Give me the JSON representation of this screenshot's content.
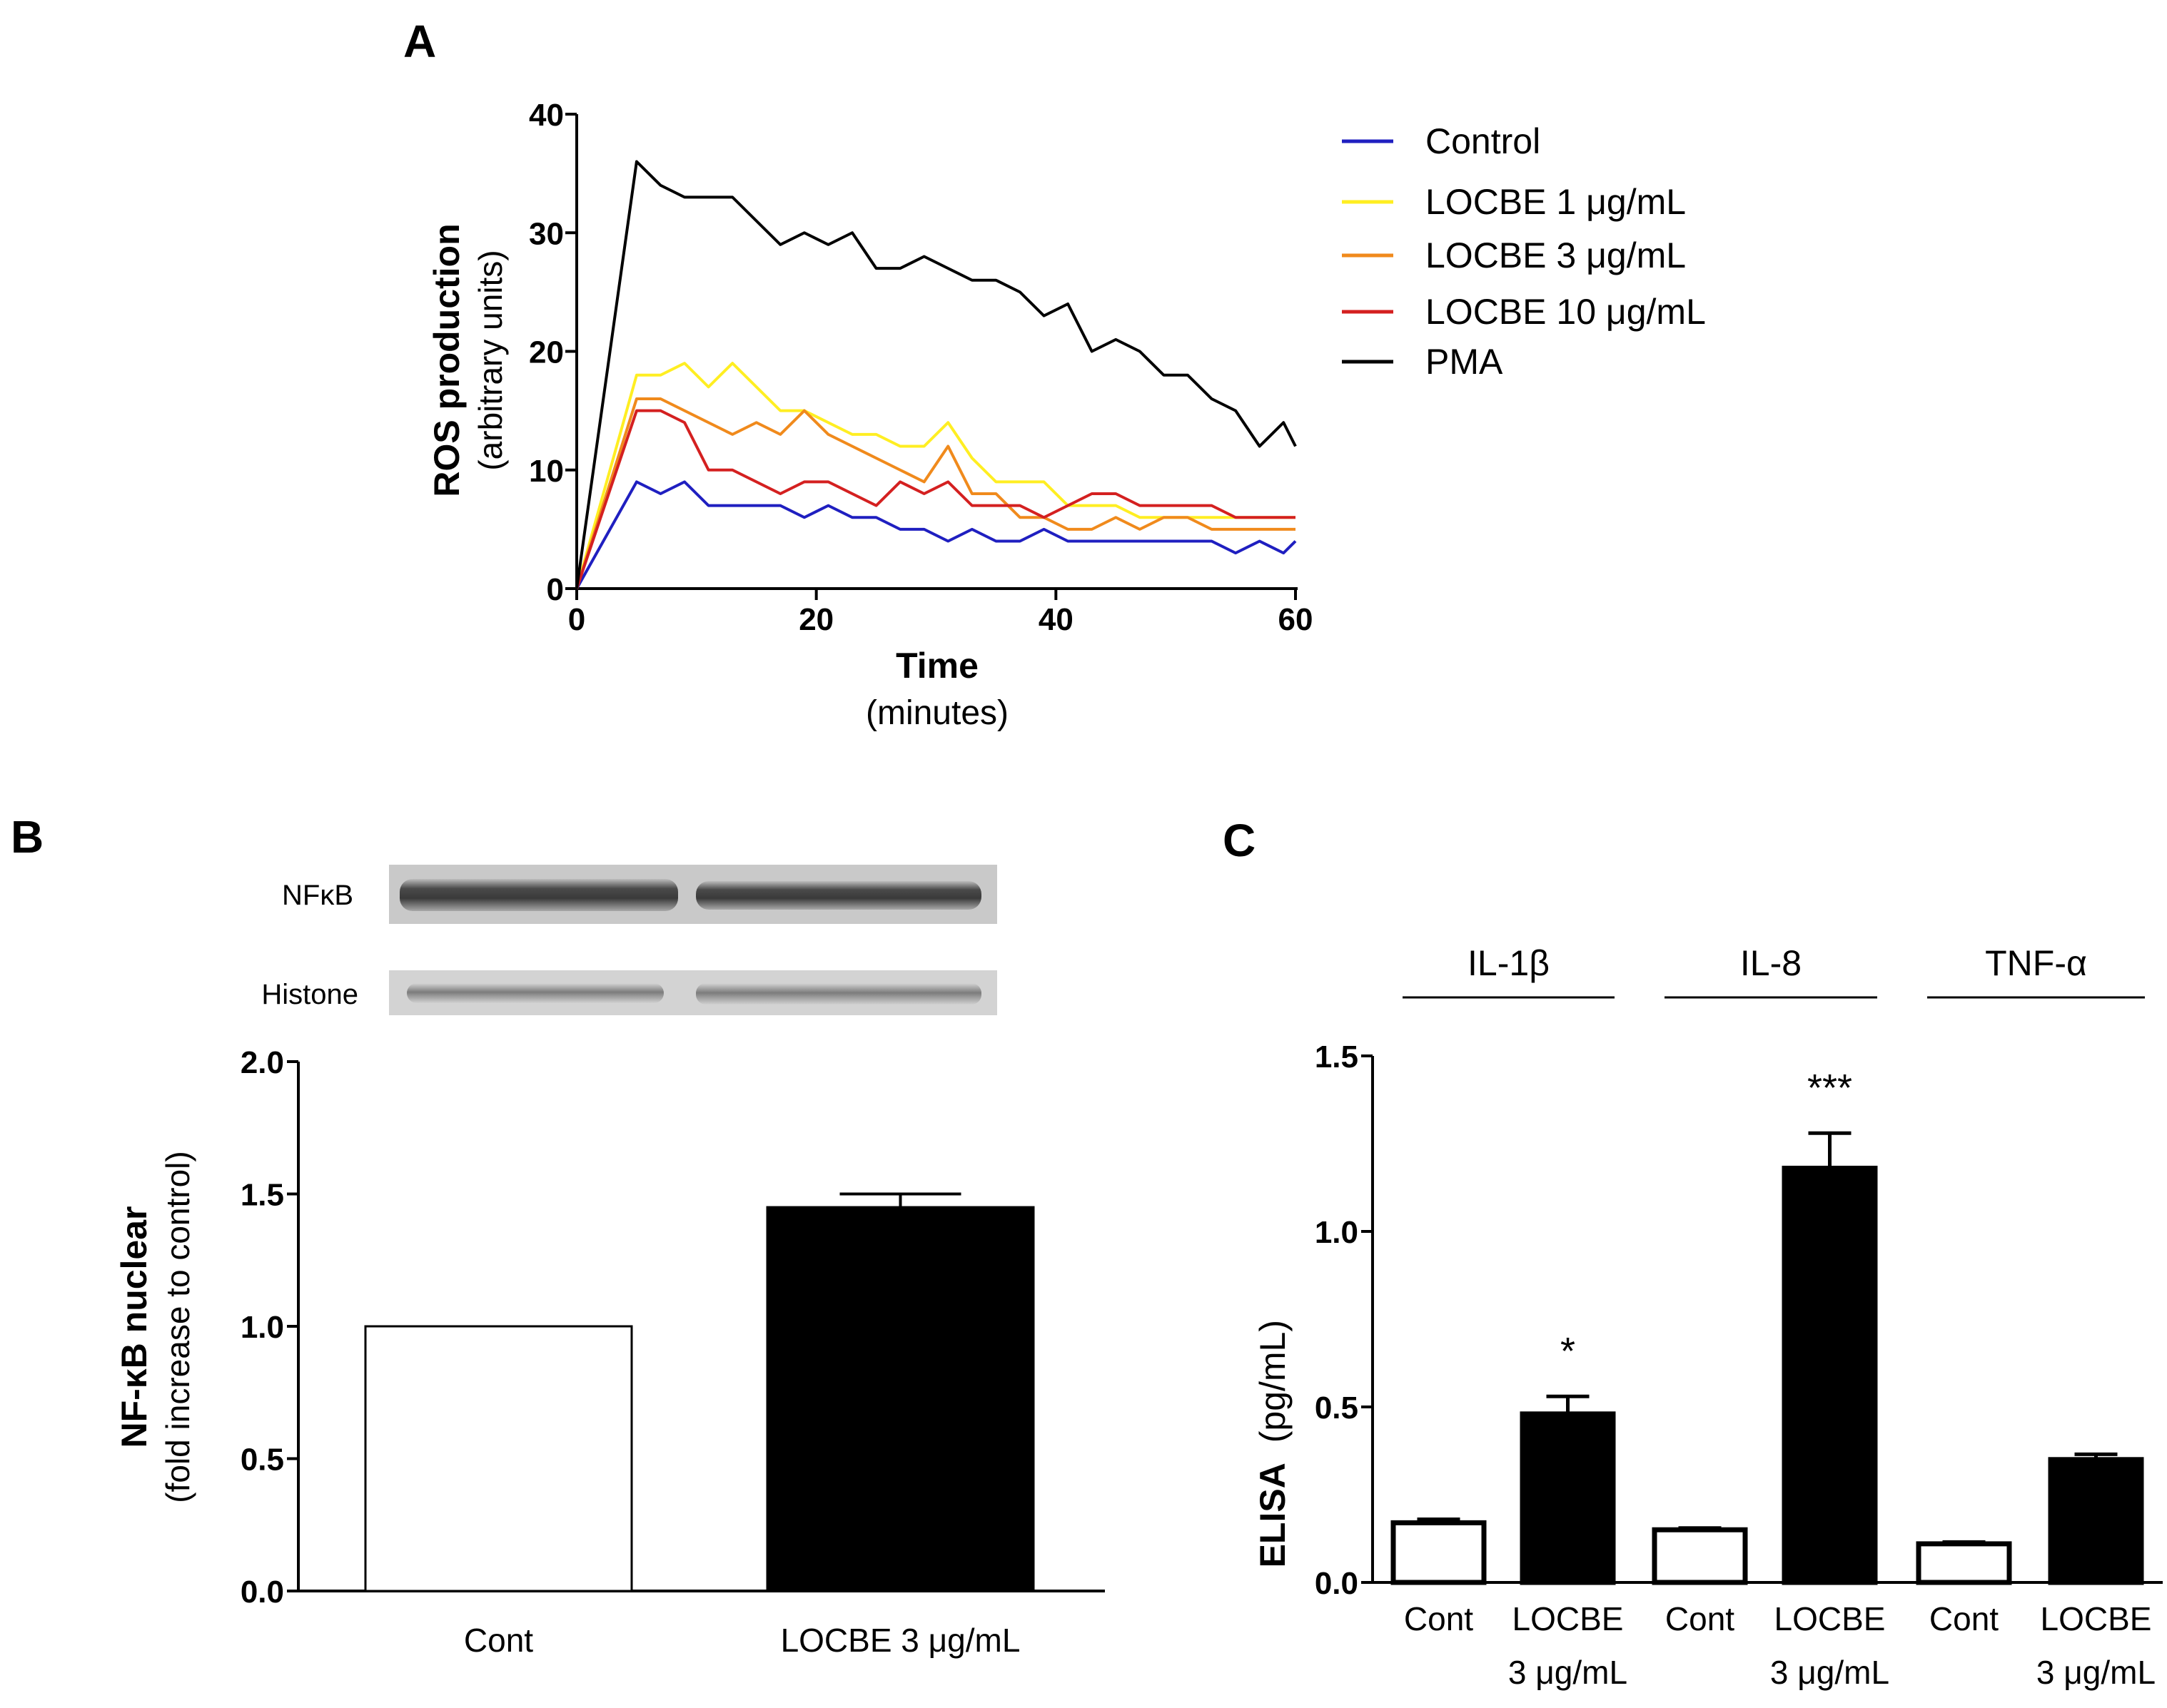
{
  "colors": {
    "control": "#1f1fc0",
    "locbe1": "#ffee22",
    "locbe3": "#f08a1c",
    "locbe10": "#d42020",
    "pma": "#000000",
    "bar_fill": "#000000",
    "bar_open": "#ffffff"
  },
  "blot": {
    "band1_label": "NFκB",
    "band2_label": "Histone"
  },
  "chart_data": [
    {
      "panel": "A",
      "type": "line",
      "title": "",
      "ylabel": "ROS production",
      "ylabel2": "(arbitrary units)",
      "xlabel": "Time",
      "xlabel2": "(minutes)",
      "xlim": [
        0,
        60
      ],
      "ylim": [
        0,
        40
      ],
      "x_ticks": [
        0,
        20,
        40,
        60
      ],
      "y_ticks": [
        0,
        10,
        20,
        30,
        40
      ],
      "legend_position": "right",
      "x": [
        0,
        5,
        7,
        9,
        11,
        13,
        15,
        17,
        19,
        21,
        23,
        25,
        27,
        29,
        31,
        33,
        35,
        37,
        39,
        41,
        43,
        45,
        47,
        49,
        51,
        53,
        55,
        57,
        59,
        60
      ],
      "series": [
        {
          "name": "Control",
          "color_key": "control",
          "values": [
            0,
            9,
            8,
            9,
            7,
            7,
            7,
            7,
            6,
            7,
            6,
            6,
            5,
            5,
            4,
            5,
            4,
            4,
            5,
            4,
            4,
            4,
            4,
            4,
            4,
            4,
            3,
            4,
            3,
            4
          ]
        },
        {
          "name": "LOCBE 1 μg/mL",
          "color_key": "locbe1",
          "values": [
            0,
            18,
            18,
            19,
            17,
            19,
            17,
            15,
            15,
            14,
            13,
            13,
            12,
            12,
            14,
            11,
            9,
            9,
            9,
            7,
            7,
            7,
            6,
            6,
            6,
            6,
            6,
            6,
            6,
            6
          ]
        },
        {
          "name": "LOCBE 3 μg/mL",
          "color_key": "locbe3",
          "values": [
            0,
            16,
            16,
            15,
            14,
            13,
            14,
            13,
            15,
            13,
            12,
            11,
            10,
            9,
            12,
            8,
            8,
            6,
            6,
            5,
            5,
            6,
            5,
            6,
            6,
            5,
            5,
            5,
            5,
            5
          ]
        },
        {
          "name": "LOCBE 10 μg/mL",
          "color_key": "locbe10",
          "values": [
            0,
            15,
            15,
            14,
            10,
            10,
            9,
            8,
            9,
            9,
            8,
            7,
            9,
            8,
            9,
            7,
            7,
            7,
            6,
            7,
            8,
            8,
            7,
            7,
            7,
            7,
            6,
            6,
            6,
            6
          ]
        },
        {
          "name": "PMA",
          "color_key": "pma",
          "values": [
            0,
            36,
            34,
            33,
            33,
            33,
            31,
            29,
            30,
            29,
            30,
            27,
            27,
            28,
            27,
            26,
            26,
            25,
            23,
            24,
            20,
            21,
            20,
            18,
            18,
            16,
            15,
            12,
            14,
            12
          ]
        }
      ]
    },
    {
      "panel": "B",
      "type": "bar",
      "ylabel": "NF-κB nuclear",
      "ylabel2": "(fold increase to control)",
      "ylim": [
        0,
        2.0
      ],
      "y_ticks": [
        0.0,
        0.5,
        1.0,
        1.5,
        2.0
      ],
      "categories": [
        "Cont",
        "LOCBE 3 μg/mL"
      ],
      "values": [
        1.0,
        1.45
      ],
      "errors": [
        0,
        0.05
      ],
      "fills": [
        "open",
        "solid"
      ]
    },
    {
      "panel": "C",
      "type": "bar",
      "ylabel": "ELISA",
      "ylabel2": "(pg/mL)",
      "ylim": [
        0,
        1.5
      ],
      "y_ticks": [
        0.0,
        0.5,
        1.0,
        1.5
      ],
      "groups": [
        "IL-1β",
        "IL-8",
        "TNF-α"
      ],
      "categories": [
        "Cont",
        "LOCBE|3 μg/mL",
        "Cont",
        "LOCBE|3 μg/mL",
        "Cont",
        "LOCBE|3 μg/mL"
      ],
      "values": [
        0.17,
        0.48,
        0.15,
        1.18,
        0.11,
        0.35
      ],
      "errors": [
        0.01,
        0.05,
        0.005,
        0.1,
        0.005,
        0.015
      ],
      "fills": [
        "open",
        "solid",
        "open",
        "solid",
        "open",
        "solid"
      ],
      "annotations": [
        "",
        "*",
        "",
        "***",
        "",
        ""
      ]
    }
  ],
  "panels": {
    "a_label": "A",
    "b_label": "B",
    "c_label": "C"
  }
}
